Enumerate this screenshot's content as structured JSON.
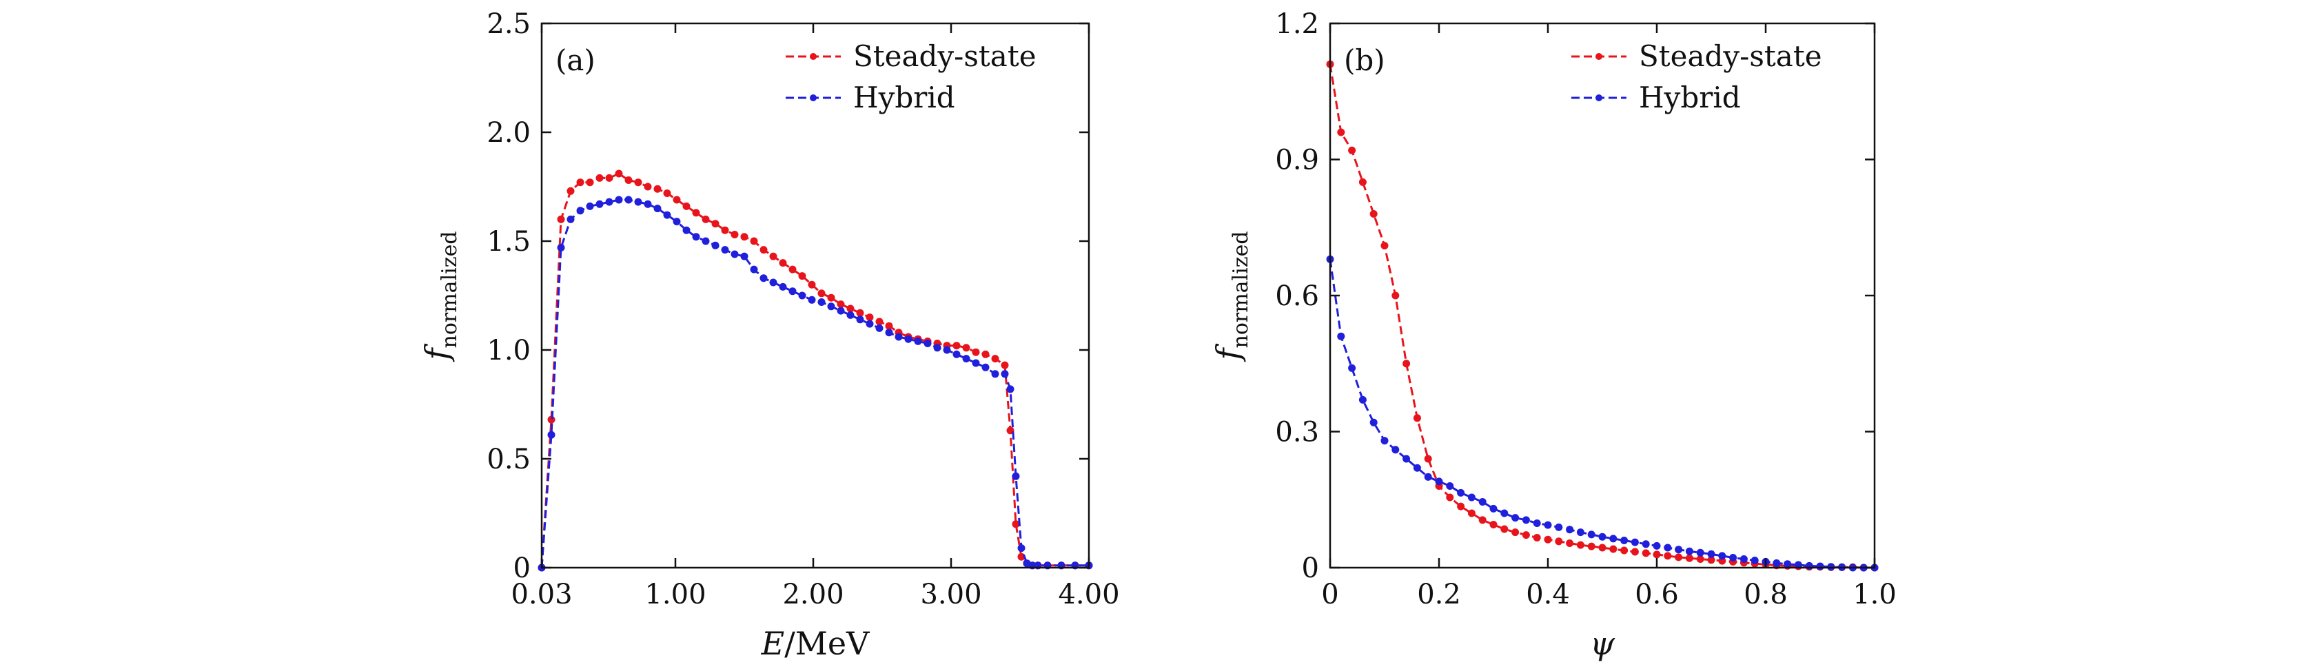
{
  "colors": {
    "steady": "#e8141b",
    "hybrid": "#1f1fdc",
    "axes": "#111111"
  },
  "chart_data": [
    {
      "panel": "(a)",
      "type": "line",
      "xlabel_italic": "E",
      "xlabel_rest": "/MeV",
      "ylabel_main": "f",
      "ylabel_sub": "normalized",
      "xlim": [
        0.03,
        4.0
      ],
      "ylim": [
        0,
        2.5
      ],
      "xticks": [
        0.03,
        1.0,
        2.0,
        3.0,
        4.0
      ],
      "xtick_labels": [
        "0.03",
        "1.00",
        "2.00",
        "3.00",
        "4.00"
      ],
      "yticks": [
        0,
        0.5,
        1.0,
        1.5,
        2.0,
        2.5
      ],
      "ytick_labels": [
        "0",
        "0.5",
        "1.0",
        "1.5",
        "2.0",
        "2.5"
      ],
      "legend": [
        "Steady-state",
        "Hybrid"
      ],
      "legend_position": "top-right",
      "series": [
        {
          "name": "Steady-state",
          "x": [
            0.03,
            0.1,
            0.17,
            0.24,
            0.31,
            0.38,
            0.45,
            0.52,
            0.59,
            0.66,
            0.73,
            0.8,
            0.87,
            0.94,
            1.01,
            1.08,
            1.15,
            1.22,
            1.29,
            1.36,
            1.43,
            1.5,
            1.57,
            1.64,
            1.71,
            1.78,
            1.85,
            1.92,
            1.99,
            2.06,
            2.13,
            2.2,
            2.27,
            2.34,
            2.41,
            2.48,
            2.55,
            2.62,
            2.69,
            2.76,
            2.83,
            2.9,
            2.97,
            3.04,
            3.11,
            3.18,
            3.25,
            3.32,
            3.39,
            3.43,
            3.47,
            3.51,
            3.55,
            3.59,
            3.63,
            3.7,
            3.8,
            3.9,
            4.0
          ],
          "y": [
            0,
            0.68,
            1.6,
            1.73,
            1.77,
            1.77,
            1.79,
            1.79,
            1.81,
            1.78,
            1.77,
            1.75,
            1.74,
            1.72,
            1.69,
            1.66,
            1.63,
            1.6,
            1.58,
            1.55,
            1.53,
            1.52,
            1.5,
            1.46,
            1.43,
            1.4,
            1.37,
            1.34,
            1.3,
            1.26,
            1.24,
            1.21,
            1.19,
            1.17,
            1.15,
            1.13,
            1.11,
            1.08,
            1.06,
            1.05,
            1.04,
            1.03,
            1.02,
            1.02,
            1.01,
            0.99,
            0.98,
            0.96,
            0.93,
            0.63,
            0.2,
            0.05,
            0.02,
            0.01,
            0.01,
            0.01,
            0.01,
            0.01,
            0.01
          ]
        },
        {
          "name": "Hybrid",
          "x": [
            0.03,
            0.1,
            0.17,
            0.24,
            0.31,
            0.38,
            0.45,
            0.52,
            0.59,
            0.66,
            0.73,
            0.8,
            0.87,
            0.94,
            1.01,
            1.08,
            1.15,
            1.22,
            1.29,
            1.36,
            1.43,
            1.5,
            1.57,
            1.64,
            1.71,
            1.78,
            1.85,
            1.92,
            1.99,
            2.06,
            2.13,
            2.2,
            2.27,
            2.34,
            2.41,
            2.48,
            2.55,
            2.62,
            2.69,
            2.76,
            2.83,
            2.9,
            2.97,
            3.04,
            3.11,
            3.18,
            3.25,
            3.32,
            3.39,
            3.43,
            3.47,
            3.51,
            3.55,
            3.59,
            3.63,
            3.7,
            3.8,
            3.9,
            4.0
          ],
          "y": [
            0,
            0.61,
            1.47,
            1.6,
            1.64,
            1.66,
            1.67,
            1.68,
            1.69,
            1.69,
            1.68,
            1.67,
            1.65,
            1.62,
            1.59,
            1.55,
            1.52,
            1.5,
            1.48,
            1.46,
            1.44,
            1.43,
            1.37,
            1.33,
            1.31,
            1.29,
            1.27,
            1.25,
            1.23,
            1.22,
            1.2,
            1.18,
            1.16,
            1.14,
            1.12,
            1.1,
            1.08,
            1.06,
            1.05,
            1.04,
            1.03,
            1.01,
            1.0,
            0.98,
            0.96,
            0.94,
            0.92,
            0.89,
            0.89,
            0.82,
            0.42,
            0.09,
            0.02,
            0.01,
            0.01,
            0.01,
            0.01,
            0.01,
            0.01
          ]
        }
      ]
    },
    {
      "panel": "(b)",
      "type": "line",
      "xlabel_italic": "ψ",
      "xlabel_rest": "",
      "ylabel_main": "f",
      "ylabel_sub": "normalized",
      "xlim": [
        0,
        1.0
      ],
      "ylim": [
        0,
        1.2
      ],
      "xticks": [
        0,
        0.2,
        0.4,
        0.6,
        0.8,
        1.0
      ],
      "xtick_labels": [
        "0",
        "0.2",
        "0.4",
        "0.6",
        "0.8",
        "1.0"
      ],
      "yticks": [
        0,
        0.3,
        0.6,
        0.9,
        1.2
      ],
      "ytick_labels": [
        "0",
        "0.3",
        "0.6",
        "0.9",
        "1.2"
      ],
      "legend": [
        "Steady-state",
        "Hybrid"
      ],
      "legend_position": "top-right",
      "series": [
        {
          "name": "Steady-state",
          "x": [
            0,
            0.02,
            0.04,
            0.06,
            0.08,
            0.1,
            0.12,
            0.14,
            0.16,
            0.18,
            0.2,
            0.22,
            0.24,
            0.26,
            0.28,
            0.3,
            0.32,
            0.34,
            0.36,
            0.38,
            0.4,
            0.42,
            0.44,
            0.46,
            0.48,
            0.5,
            0.52,
            0.54,
            0.56,
            0.58,
            0.6,
            0.62,
            0.64,
            0.66,
            0.68,
            0.7,
            0.72,
            0.74,
            0.76,
            0.78,
            0.8,
            0.82,
            0.84,
            0.86,
            0.88,
            0.9,
            0.92,
            0.94,
            0.96,
            0.98,
            1.0
          ],
          "y": [
            1.11,
            0.96,
            0.92,
            0.85,
            0.78,
            0.71,
            0.6,
            0.45,
            0.33,
            0.24,
            0.18,
            0.155,
            0.135,
            0.12,
            0.105,
            0.095,
            0.085,
            0.078,
            0.072,
            0.066,
            0.062,
            0.058,
            0.054,
            0.05,
            0.047,
            0.044,
            0.041,
            0.038,
            0.035,
            0.032,
            0.029,
            0.026,
            0.023,
            0.021,
            0.019,
            0.017,
            0.015,
            0.013,
            0.011,
            0.009,
            0.007,
            0.005,
            0.004,
            0.003,
            0.002,
            0.002,
            0.001,
            0.001,
            0.001,
            0.0,
            0.0
          ]
        },
        {
          "name": "Hybrid",
          "x": [
            0,
            0.02,
            0.04,
            0.06,
            0.08,
            0.1,
            0.12,
            0.14,
            0.16,
            0.18,
            0.2,
            0.22,
            0.24,
            0.26,
            0.28,
            0.3,
            0.32,
            0.34,
            0.36,
            0.38,
            0.4,
            0.42,
            0.44,
            0.46,
            0.48,
            0.5,
            0.52,
            0.54,
            0.56,
            0.58,
            0.6,
            0.62,
            0.64,
            0.66,
            0.68,
            0.7,
            0.72,
            0.74,
            0.76,
            0.78,
            0.8,
            0.82,
            0.84,
            0.86,
            0.88,
            0.9,
            0.92,
            0.94,
            0.96,
            0.98,
            1.0
          ],
          "y": [
            0.68,
            0.51,
            0.44,
            0.37,
            0.32,
            0.28,
            0.26,
            0.24,
            0.22,
            0.2,
            0.19,
            0.18,
            0.165,
            0.155,
            0.145,
            0.13,
            0.12,
            0.11,
            0.105,
            0.098,
            0.094,
            0.089,
            0.084,
            0.078,
            0.073,
            0.068,
            0.064,
            0.06,
            0.056,
            0.052,
            0.048,
            0.044,
            0.04,
            0.036,
            0.033,
            0.03,
            0.026,
            0.022,
            0.019,
            0.016,
            0.013,
            0.01,
            0.008,
            0.006,
            0.004,
            0.003,
            0.002,
            0.001,
            0.0,
            0.0,
            0.0
          ]
        }
      ]
    }
  ]
}
